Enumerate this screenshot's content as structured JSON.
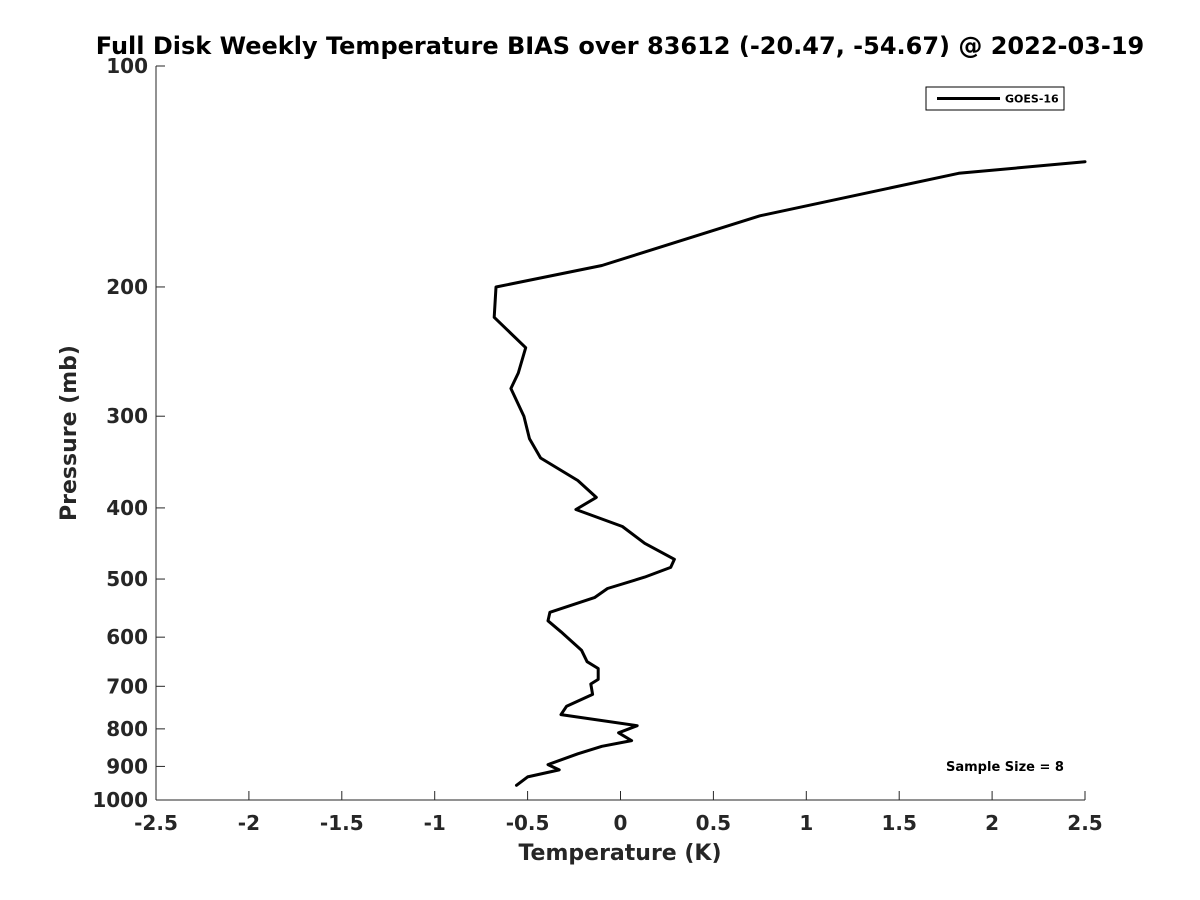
{
  "chart_data": {
    "type": "line",
    "title": "Full Disk Weekly Temperature BIAS over 83612 (-20.47, -54.67) @ 2022-03-19",
    "xlabel": "Temperature (K)",
    "ylabel": "Pressure (mb)",
    "xlim": [
      -2.5,
      2.5
    ],
    "ylim": [
      1000,
      100
    ],
    "y_scale": "log",
    "x_ticks": [
      "-2.5",
      "-2",
      "-1.5",
      "-1",
      "-0.5",
      "0",
      "0.5",
      "1",
      "1.5",
      "2",
      "2.5"
    ],
    "x_tick_values": [
      -2.5,
      -2,
      -1.5,
      -1,
      -0.5,
      0,
      0.5,
      1,
      1.5,
      2,
      2.5
    ],
    "y_ticks": [
      "100",
      "200",
      "300",
      "400",
      "500",
      "600",
      "700",
      "800",
      "900",
      "1000"
    ],
    "y_tick_values": [
      100,
      200,
      300,
      400,
      500,
      600,
      700,
      800,
      900,
      1000
    ],
    "grid": false,
    "legend_position": "top-right",
    "annotation": "Sample Size = 8",
    "series": [
      {
        "name": "GOES-16",
        "color": "#000000",
        "points": [
          [
            2.5,
            135
          ],
          [
            1.82,
            140
          ],
          [
            0.75,
            160
          ],
          [
            -0.1,
            187
          ],
          [
            -0.67,
            200
          ],
          [
            -0.68,
            220
          ],
          [
            -0.51,
            242
          ],
          [
            -0.55,
            262
          ],
          [
            -0.59,
            275
          ],
          [
            -0.52,
            300
          ],
          [
            -0.49,
            322
          ],
          [
            -0.43,
            342
          ],
          [
            -0.23,
            367
          ],
          [
            -0.13,
            387
          ],
          [
            -0.24,
            402
          ],
          [
            0.01,
            424
          ],
          [
            0.13,
            447
          ],
          [
            0.29,
            470
          ],
          [
            0.27,
            482
          ],
          [
            0.13,
            497
          ],
          [
            -0.07,
            515
          ],
          [
            -0.14,
            530
          ],
          [
            -0.38,
            555
          ],
          [
            -0.39,
            570
          ],
          [
            -0.32,
            590
          ],
          [
            -0.21,
            625
          ],
          [
            -0.18,
            648
          ],
          [
            -0.12,
            662
          ],
          [
            -0.12,
            685
          ],
          [
            -0.16,
            695
          ],
          [
            -0.15,
            718
          ],
          [
            -0.29,
            745
          ],
          [
            -0.32,
            765
          ],
          [
            0.09,
            792
          ],
          [
            -0.01,
            810
          ],
          [
            0.06,
            830
          ],
          [
            -0.1,
            845
          ],
          [
            -0.23,
            865
          ],
          [
            -0.39,
            895
          ],
          [
            -0.33,
            910
          ],
          [
            -0.5,
            930
          ],
          [
            -0.56,
            955
          ]
        ]
      }
    ]
  }
}
